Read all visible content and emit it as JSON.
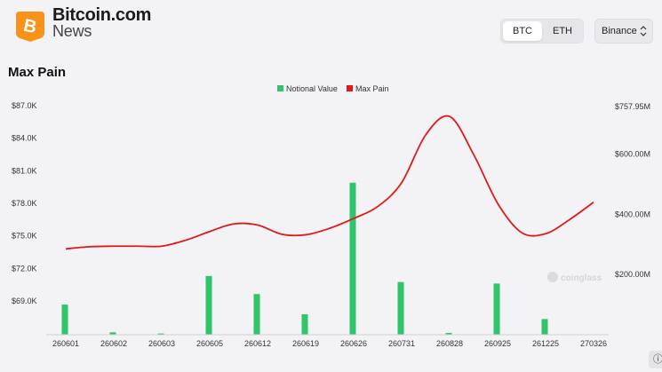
{
  "brand": {
    "name": "Bitcoin.com",
    "sub": "News",
    "logo_letter": "B"
  },
  "controls": {
    "btc_label": "BTC",
    "eth_label": "ETH",
    "exchange_label": "Binance",
    "exchange_chevron": "⌃⌄"
  },
  "help_icon": "ⓘ",
  "colors": {
    "notional": "#2ec56b",
    "maxpain": "#e0191b",
    "logo": "#f7931a"
  },
  "chart_data": {
    "type": "bar+line",
    "title": "Max Pain",
    "categories": [
      "260601",
      "260602",
      "260603",
      "260605",
      "260612",
      "260619",
      "260626",
      "260731",
      "260828",
      "260925",
      "261225",
      "270326"
    ],
    "legend": [
      "Notional Value",
      "Max Pain"
    ],
    "legend_position": "top-center",
    "left_axis": {
      "ticks": [
        "$87.0K",
        "$84.0K",
        "$81.0K",
        "$78.0K",
        "$75.0K",
        "$72.0K",
        "$69.0K"
      ],
      "tick_values": [
        87000,
        84000,
        81000,
        78000,
        75000,
        72000,
        69000
      ],
      "range": [
        66500,
        87000
      ]
    },
    "right_axis": {
      "ticks": [
        "$757.95M",
        "$600.00M",
        "$400.00M",
        "$200.00M"
      ],
      "tick_values": [
        757.95,
        600,
        400,
        200
      ],
      "range": [
        0,
        757.95
      ]
    },
    "series": [
      {
        "name": "Notional Value",
        "type": "bar",
        "axis": "right",
        "values": [
          100,
          8,
          4,
          195,
          135,
          68,
          505,
          175,
          6,
          170,
          52,
          null
        ]
      },
      {
        "name": "Max Pain",
        "type": "line",
        "axis": "left",
        "x": [
          0,
          0.5,
          1,
          1.5,
          2,
          2.5,
          3,
          3.5,
          4,
          4.5,
          5,
          5.5,
          6,
          6.5,
          7,
          7.5,
          8,
          8.5,
          9,
          9.5,
          10,
          10.5,
          11
        ],
        "values": [
          73800,
          74000,
          74050,
          74050,
          74050,
          74600,
          75400,
          76100,
          76000,
          75150,
          75100,
          75700,
          76600,
          77700,
          79900,
          84300,
          86000,
          82500,
          78000,
          75300,
          75200,
          76500,
          78100
        ]
      }
    ],
    "grid": false,
    "watermark": "coinglass"
  }
}
